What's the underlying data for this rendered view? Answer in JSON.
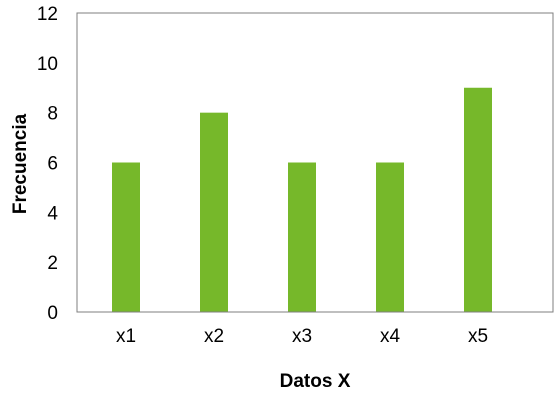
{
  "chart_data": {
    "type": "bar",
    "title": "",
    "xlabel": "Datos X",
    "ylabel": "Frecuencia",
    "categories": [
      "x1",
      "x2",
      "x3",
      "x4",
      "x5"
    ],
    "values": [
      6,
      8,
      6,
      6,
      9
    ],
    "ylim": [
      0,
      12
    ],
    "yticks": [
      "0",
      "2",
      "4",
      "6",
      "8",
      "10",
      "12"
    ],
    "grid": false,
    "legend": "none",
    "bar_color": "#76b82a",
    "axis_color": "#7f7f7f"
  }
}
